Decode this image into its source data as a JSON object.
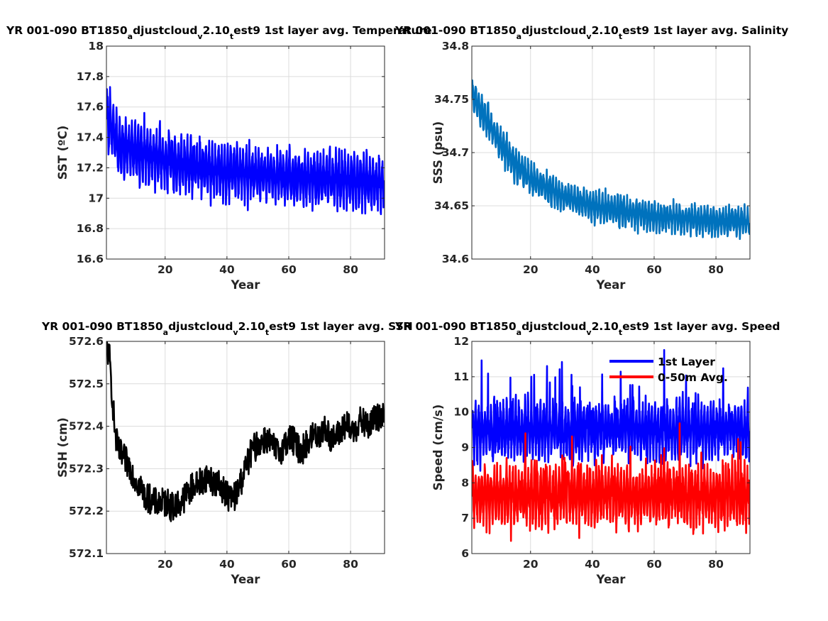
{
  "chart_data": [
    {
      "type": "line",
      "title": "YR 001-090 BT1850_adjustcloud_v2.10_test9 1st layer avg. Temperature",
      "title_parts": [
        "YR 001-090 BT1850",
        "a",
        "djustcloud",
        "v",
        "2.10",
        "t",
        "est9 1st layer avg. Temperature"
      ],
      "xlabel": "Year",
      "ylabel": "SST (ºC)",
      "xlim": [
        1,
        91
      ],
      "ylim": [
        16.6,
        18
      ],
      "xticks": [
        20,
        40,
        60,
        80
      ],
      "xtick_labels": [
        "20",
        "40",
        "60",
        "80"
      ],
      "yticks": [
        16.6,
        16.8,
        17,
        17.2,
        17.4,
        17.6,
        17.8,
        18
      ],
      "ytick_labels": [
        "16.6",
        "16.8",
        "17",
        "17.2",
        "17.4",
        "17.6",
        "17.8",
        "18"
      ],
      "grid": true,
      "series": [
        {
          "color": "#0000ff",
          "seasonal": true,
          "x": [
            1,
            5,
            10,
            20,
            30,
            40,
            50,
            60,
            70,
            80,
            91
          ],
          "y_mean": [
            17.55,
            17.35,
            17.32,
            17.25,
            17.2,
            17.18,
            17.16,
            17.14,
            17.13,
            17.12,
            17.1
          ],
          "y_amplitude": [
            0.2,
            0.18,
            0.17,
            0.17,
            0.16,
            0.16,
            0.16,
            0.16,
            0.16,
            0.16,
            0.16
          ]
        }
      ]
    },
    {
      "type": "line",
      "title": "YR 001-090 BT1850_adjustcloud_v2.10_test9 1st layer avg. Salinity",
      "title_parts": [
        "YR 001-090 BT1850",
        "a",
        "djustcloud",
        "v",
        "2.10",
        "t",
        "est9 1st layer avg. Salinity"
      ],
      "xlabel": "Year",
      "ylabel": "SSS (psu)",
      "xlim": [
        1,
        91
      ],
      "ylim": [
        34.6,
        34.8
      ],
      "xticks": [
        20,
        40,
        60,
        80
      ],
      "xtick_labels": [
        "20",
        "40",
        "60",
        "80"
      ],
      "yticks": [
        34.6,
        34.65,
        34.7,
        34.75,
        34.8
      ],
      "ytick_labels": [
        "34.6",
        "34.65",
        "34.7",
        "34.75",
        "34.8"
      ],
      "grid": true,
      "series": [
        {
          "color": "#0072bd",
          "seasonal": true,
          "x": [
            1,
            3,
            5,
            10,
            15,
            20,
            30,
            40,
            50,
            60,
            70,
            80,
            91
          ],
          "y_mean": [
            34.755,
            34.745,
            34.735,
            34.71,
            34.69,
            34.675,
            34.66,
            34.65,
            34.645,
            34.64,
            34.638,
            34.636,
            34.635
          ],
          "y_amplitude": [
            0.015,
            0.015,
            0.014,
            0.013,
            0.013,
            0.012,
            0.012,
            0.012,
            0.012,
            0.012,
            0.012,
            0.012,
            0.012
          ]
        }
      ]
    },
    {
      "type": "line",
      "title": "YR 001-090 BT1850_adjustcloud_v2.10_test9 1st layer avg. SSH",
      "title_parts": [
        "YR 001-090 BT1850",
        "a",
        "djustcloud",
        "v",
        "2.10",
        "t",
        "est9 1st layer avg. SSH"
      ],
      "xlabel": "Year",
      "ylabel": "SSH (cm)",
      "xlim": [
        1,
        91
      ],
      "ylim": [
        572.1,
        572.6
      ],
      "xticks": [
        20,
        40,
        60,
        80
      ],
      "xtick_labels": [
        "20",
        "40",
        "60",
        "80"
      ],
      "yticks": [
        572.1,
        572.2,
        572.3,
        572.4,
        572.5,
        572.6
      ],
      "ytick_labels": [
        "572.1",
        "572.2",
        "572.3",
        "572.4",
        "572.5",
        "572.6"
      ],
      "grid": true,
      "series": [
        {
          "color": "#000000",
          "seasonal": false,
          "x": [
            1,
            2,
            3,
            4,
            5,
            6,
            7,
            8,
            9,
            10,
            11,
            12,
            13,
            14,
            15,
            16,
            17,
            18,
            19,
            20,
            21,
            22,
            23,
            24,
            25,
            26,
            27,
            28,
            29,
            30,
            31,
            32,
            33,
            34,
            35,
            36,
            37,
            38,
            39,
            40,
            41,
            42,
            43,
            44,
            45,
            46,
            47,
            48,
            49,
            50,
            51,
            52,
            53,
            54,
            55,
            56,
            57,
            58,
            59,
            60,
            61,
            62,
            63,
            64,
            65,
            66,
            67,
            68,
            69,
            70,
            71,
            72,
            73,
            74,
            75,
            76,
            77,
            78,
            79,
            80,
            81,
            82,
            83,
            84,
            85,
            86,
            87,
            88,
            89,
            90,
            91
          ],
          "y": [
            572.59,
            572.56,
            572.46,
            572.37,
            572.34,
            572.33,
            572.32,
            572.31,
            572.3,
            572.28,
            572.27,
            572.26,
            572.24,
            572.23,
            572.23,
            572.22,
            572.22,
            572.22,
            572.22,
            572.22,
            572.22,
            572.21,
            572.21,
            572.22,
            572.22,
            572.23,
            572.24,
            572.25,
            572.26,
            572.26,
            572.27,
            572.27,
            572.28,
            572.28,
            572.27,
            572.27,
            572.26,
            572.26,
            572.25,
            572.24,
            572.23,
            572.23,
            572.24,
            572.26,
            572.28,
            572.3,
            572.32,
            572.34,
            572.35,
            572.36,
            572.36,
            572.37,
            572.37,
            572.36,
            572.35,
            572.34,
            572.34,
            572.35,
            572.36,
            572.37,
            572.37,
            572.36,
            572.35,
            572.34,
            572.35,
            572.36,
            572.37,
            572.38,
            572.38,
            572.38,
            572.39,
            572.39,
            572.38,
            572.37,
            572.37,
            572.38,
            572.39,
            572.4,
            572.4,
            572.39,
            572.39,
            572.4,
            572.41,
            572.41,
            572.4,
            572.4,
            572.41,
            572.42,
            572.42,
            572.43,
            572.44
          ],
          "y_jitter": 0.035
        }
      ]
    },
    {
      "type": "line",
      "title": "YR 001-090 BT1850_adjustcloud_v2.10_test9 1st layer avg. Speed",
      "title_parts": [
        "YR 001-090 BT1850",
        "a",
        "djustcloud",
        "v",
        "2.10",
        "t",
        "est9 1st layer avg. Speed"
      ],
      "xlabel": "Year",
      "ylabel": "Speed (cm/s)",
      "xlim": [
        1,
        91
      ],
      "ylim": [
        6,
        12
      ],
      "xticks": [
        20,
        40,
        60,
        80
      ],
      "xtick_labels": [
        "20",
        "40",
        "60",
        "80"
      ],
      "yticks": [
        6,
        7,
        8,
        9,
        10,
        11,
        12
      ],
      "ytick_labels": [
        "6",
        "7",
        "8",
        "9",
        "10",
        "11",
        "12"
      ],
      "grid": true,
      "legend": "top-right",
      "series": [
        {
          "name": "1st Layer",
          "color": "#0000ff",
          "seasonal": true,
          "x": [
            1,
            91
          ],
          "y_mean": [
            9.5,
            9.5
          ],
          "y_amplitude": [
            0.7,
            0.7
          ],
          "y_spike": 1.4
        },
        {
          "name": "0-50m Avg.",
          "color": "#ff0000",
          "seasonal": true,
          "x": [
            1,
            91
          ],
          "y_mean": [
            7.65,
            7.65
          ],
          "y_amplitude": [
            0.75,
            0.75
          ],
          "y_spike": 1.3
        }
      ]
    }
  ]
}
